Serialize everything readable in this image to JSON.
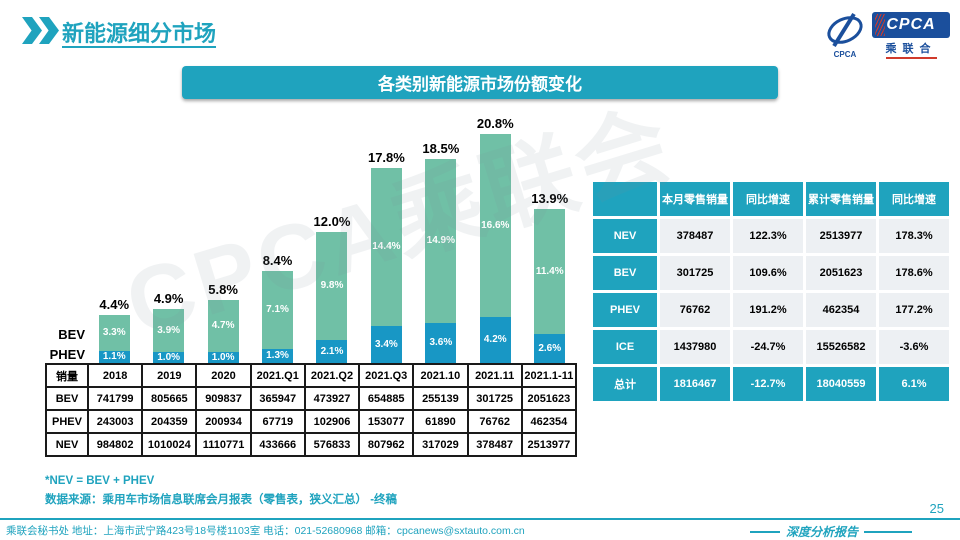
{
  "header": {
    "title": "新能源细分市场"
  },
  "logo": {
    "text": "CPCA",
    "subtext": "乘联合",
    "emblem_text": "CPCA"
  },
  "banner": {
    "title": "各类别新能源市场份额变化"
  },
  "chart_data": {
    "type": "bar",
    "stacked": true,
    "title": "各类别新能源市场份额变化",
    "unit": "%",
    "categories": [
      "2018",
      "2019",
      "2020",
      "2021.Q1",
      "2021.Q2",
      "2021.Q3",
      "2021.10",
      "2021.11",
      "2021.1-11"
    ],
    "series": [
      {
        "name": "BEV",
        "color": "#70C0A6",
        "values": [
          3.3,
          3.9,
          4.7,
          7.1,
          9.8,
          14.4,
          14.9,
          16.6,
          11.4
        ],
        "labels": [
          "3.3%",
          "3.9%",
          "4.7%",
          "7.1%",
          "9.8%",
          "14.4%",
          "14.9%",
          "16.6%",
          "11.4%"
        ]
      },
      {
        "name": "PHEV",
        "color": "#1897C5",
        "values": [
          1.1,
          1.0,
          1.0,
          1.3,
          2.1,
          3.4,
          3.6,
          4.2,
          2.6
        ],
        "labels": [
          "1.1%",
          "1.0%",
          "1.0%",
          "1.3%",
          "2.1%",
          "3.4%",
          "3.6%",
          "4.2%",
          "2.6%"
        ]
      }
    ],
    "totals": {
      "values": [
        4.4,
        4.9,
        5.8,
        8.4,
        12.0,
        17.8,
        18.5,
        20.8,
        13.9
      ],
      "labels": [
        "4.4%",
        "4.9%",
        "5.8%",
        "8.4%",
        "12.0%",
        "17.8%",
        "18.5%",
        "20.8%",
        "13.9%"
      ]
    },
    "legend": [
      "BEV",
      "PHEV"
    ],
    "legend_position": "left-of-first-bar",
    "ylim": [
      0,
      22
    ],
    "grid": false
  },
  "sales_table": {
    "header": [
      "销量",
      "2018",
      "2019",
      "2020",
      "2021.Q1",
      "2021.Q2",
      "2021.Q3",
      "2021.10",
      "2021.11",
      "2021.1-11"
    ],
    "rows": [
      [
        "BEV",
        "741799",
        "805665",
        "909837",
        "365947",
        "473927",
        "654885",
        "255139",
        "301725",
        "2051623"
      ],
      [
        "PHEV",
        "243003",
        "204359",
        "200934",
        "67719",
        "102906",
        "153077",
        "61890",
        "76762",
        "462354"
      ],
      [
        "NEV",
        "984802",
        "1010024",
        "1110771",
        "433666",
        "576833",
        "807962",
        "317029",
        "378487",
        "2513977"
      ]
    ]
  },
  "summary_table": {
    "headers": [
      "",
      "本月零售销量",
      "同比增速",
      "累计零售销量",
      "同比增速"
    ],
    "rows": [
      [
        "NEV",
        "378487",
        "122.3%",
        "2513977",
        "178.3%"
      ],
      [
        "BEV",
        "301725",
        "109.6%",
        "2051623",
        "178.6%"
      ],
      [
        "PHEV",
        "76762",
        "191.2%",
        "462354",
        "177.2%"
      ],
      [
        "ICE",
        "1437980",
        "-24.7%",
        "15526582",
        "-3.6%"
      ]
    ],
    "total_row": [
      "总计",
      "1816467",
      "-12.7%",
      "18040559",
      "6.1%"
    ]
  },
  "notes": {
    "line1": "*NEV = BEV + PHEV",
    "line2": "数据来源：乘用车市场信息联席会月报表（零售表，狭义汇总） -终稿"
  },
  "footer": {
    "contact": "乘联会秘书处  地址：上海市武宁路423号18号楼1103室 电话：021-52680968 邮箱：cpcanews@sxtauto.com.cn",
    "report_label": "深度分析报告",
    "page_number": "25"
  },
  "watermark": "CPCA乘联会",
  "colors": {
    "accent_teal": "#1FA3BE",
    "bar_green": "#70C0A6",
    "bar_blue": "#1897C5",
    "logo_blue": "#1B4F9C",
    "logo_red": "#D03A2B",
    "cell_gray": "#EDF0F3"
  }
}
